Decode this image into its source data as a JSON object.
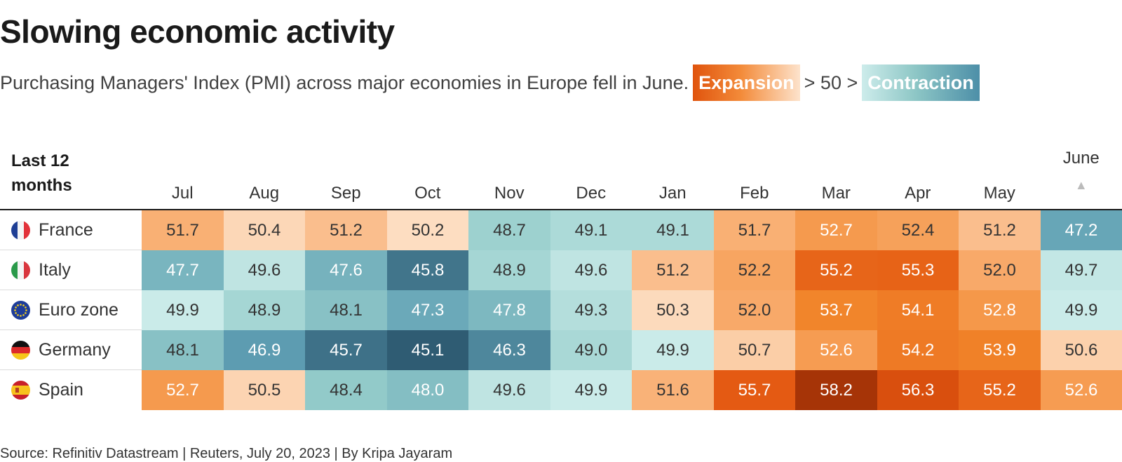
{
  "title": "Slowing economic activity",
  "subtitle": "Purchasing Managers' Index (PMI) across major economies in Europe fell in June.",
  "legend": {
    "expansion": "Expansion",
    "middle": "> 50 >",
    "contraction": "Contraction"
  },
  "source": "Source: Refinitiv Datastream | Reuters, July 20, 2023 | By Kripa Jayaram",
  "colors": {
    "expansion": "#e0540d",
    "contraction": "#3f7f98",
    "neutral": "#fde3cc"
  },
  "chart_data": {
    "type": "heatmap",
    "corner_label": [
      "Last 12",
      "months"
    ],
    "categories": [
      "Jul",
      "Aug",
      "Sep",
      "Oct",
      "Nov",
      "Dec",
      "Jan",
      "Feb",
      "Mar",
      "Apr",
      "May",
      "June"
    ],
    "rows": [
      {
        "name": "France",
        "flag": "france-flag-icon",
        "values": [
          "51.7",
          "50.4",
          "51.2",
          "50.2",
          "48.7",
          "49.1",
          "49.1",
          "51.7",
          "52.7",
          "52.4",
          "51.2",
          "47.2"
        ]
      },
      {
        "name": "Italy",
        "flag": "italy-flag-icon",
        "values": [
          "47.7",
          "49.6",
          "47.6",
          "45.8",
          "48.9",
          "49.6",
          "51.2",
          "52.2",
          "55.2",
          "55.3",
          "52.0",
          "49.7"
        ]
      },
      {
        "name": "Euro zone",
        "flag": "eu-flag-icon",
        "values": [
          "49.9",
          "48.9",
          "48.1",
          "47.3",
          "47.8",
          "49.3",
          "50.3",
          "52.0",
          "53.7",
          "54.1",
          "52.8",
          "49.9"
        ]
      },
      {
        "name": "Germany",
        "flag": "germany-flag-icon",
        "values": [
          "48.1",
          "46.9",
          "45.7",
          "45.1",
          "46.3",
          "49.0",
          "49.9",
          "50.7",
          "52.6",
          "54.2",
          "53.9",
          "50.6"
        ]
      },
      {
        "name": "Spain",
        "flag": "spain-flag-icon",
        "values": [
          "52.7",
          "50.5",
          "48.4",
          "48.0",
          "49.6",
          "49.9",
          "51.6",
          "55.7",
          "58.2",
          "56.3",
          "55.2",
          "52.6"
        ]
      }
    ],
    "threshold": 50
  }
}
